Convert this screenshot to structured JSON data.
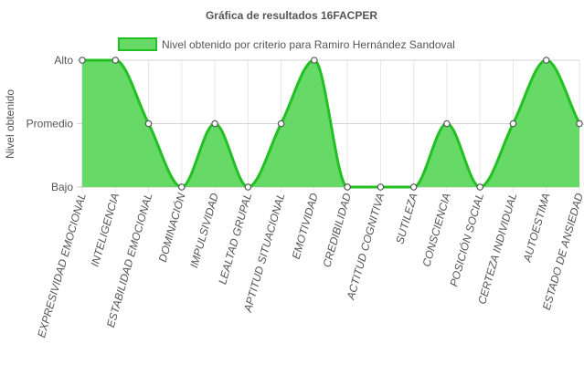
{
  "chart_data": {
    "type": "area",
    "title": "Gráfica de resultados 16FACPER",
    "ylabel": "Nivel obtenido",
    "xlabel": "",
    "y_levels": [
      "Bajo",
      "Promedio",
      "Alto"
    ],
    "ylim": [
      0,
      2
    ],
    "grid": true,
    "legend_position": "top",
    "colors": {
      "fill": "#66d966",
      "line": "#22c022",
      "point_fill": "#ffffff",
      "point_stroke": "#555555"
    },
    "categories": [
      "EXPRESIVIDAD EMOCIONAL",
      "INTELIGENCIA",
      "ESTABILIDAD EMOCIONAL",
      "DOMINACIÓN",
      "IMPULSIVIDAD",
      "LEALTAD GRUPAL",
      "APTITUD SITUACIONAL",
      "EMOTIVIDAD",
      "CREDIBILIDAD",
      "ACTITUD COGNITIVA",
      "SUTILEZA",
      "CONSCIENCIA",
      "POSICIÓN SOCIAL",
      "CERTEZA INDIVIDUAL",
      "AUTOESTIMA",
      "ESTADO DE ANSIEDAD"
    ],
    "series": [
      {
        "name": "Nivel obtenido por criterio para Ramiro Hernández Sandoval",
        "values": [
          2,
          2,
          1,
          0,
          1,
          0,
          1,
          2,
          0,
          0,
          0,
          1,
          0,
          1,
          2,
          1
        ]
      }
    ]
  }
}
